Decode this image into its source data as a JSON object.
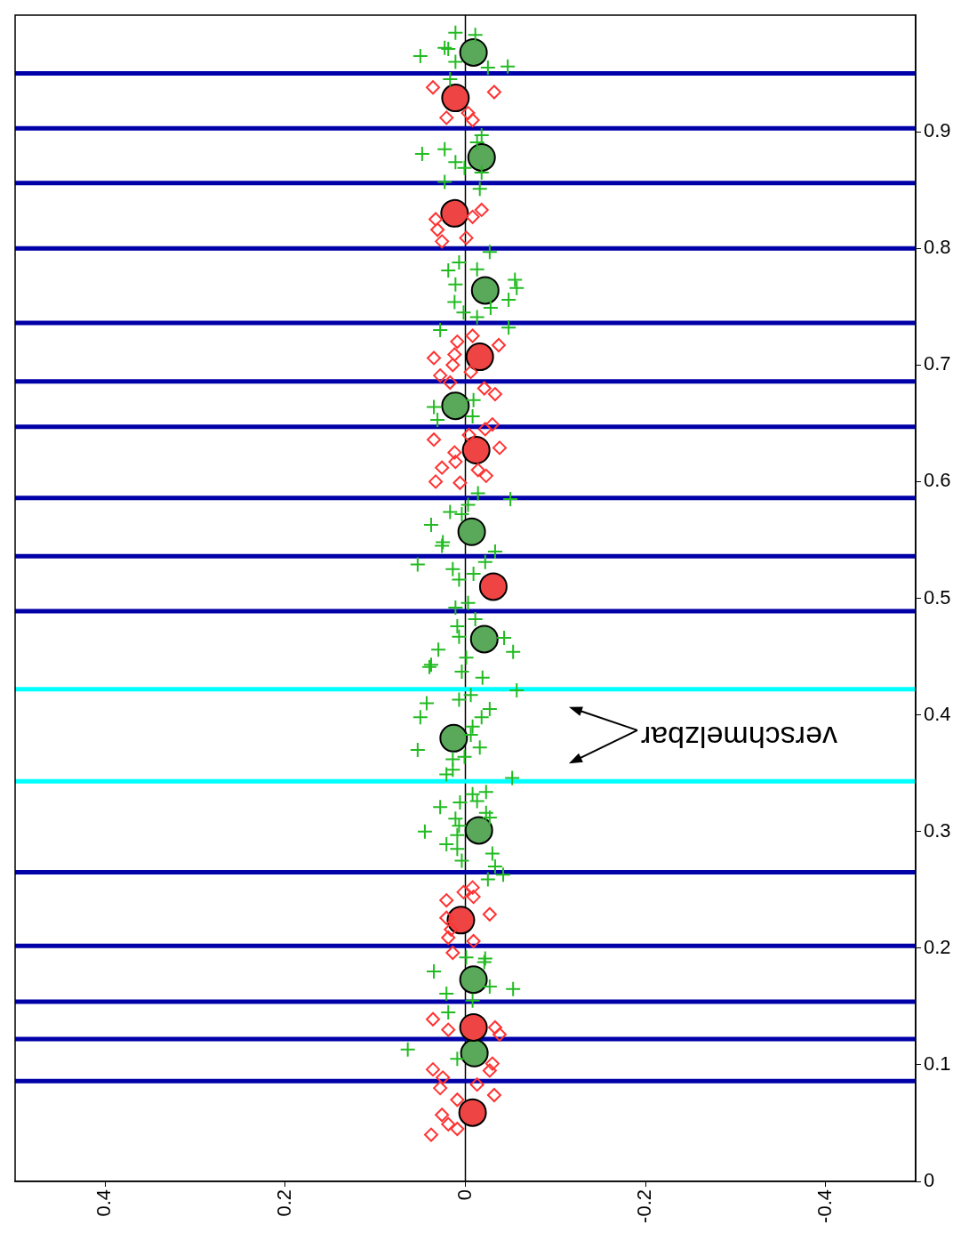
{
  "chart_data": {
    "type": "scatter",
    "xlim": [
      0.5,
      -0.5
    ],
    "ylim": [
      0,
      1
    ],
    "xticks": [
      0.4,
      0.2,
      0,
      -0.2,
      -0.4
    ],
    "yticks": [
      0,
      0.1,
      0.2,
      0.3,
      0.4,
      0.5,
      0.6,
      0.7,
      0.8,
      0.9
    ],
    "grid": false,
    "legend": false,
    "annotations": [
      "verschmelzbar"
    ],
    "ref_lines": [
      {
        "axis": "x",
        "value": 0,
        "color": "#000000"
      },
      {
        "axis": "y",
        "value": 0.086,
        "color": "#0000a8"
      },
      {
        "axis": "y",
        "value": 0.122,
        "color": "#0000a8"
      },
      {
        "axis": "y",
        "value": 0.154,
        "color": "#0000a8"
      },
      {
        "axis": "y",
        "value": 0.202,
        "color": "#0000a8"
      },
      {
        "axis": "y",
        "value": 0.265,
        "color": "#0000a8"
      },
      {
        "axis": "y",
        "value": 0.343,
        "color": "#00ffff"
      },
      {
        "axis": "y",
        "value": 0.422,
        "color": "#00ffff"
      },
      {
        "axis": "y",
        "value": 0.489,
        "color": "#0000a8"
      },
      {
        "axis": "y",
        "value": 0.536,
        "color": "#0000a8"
      },
      {
        "axis": "y",
        "value": 0.586,
        "color": "#0000a8"
      },
      {
        "axis": "y",
        "value": 0.647,
        "color": "#0000a8"
      },
      {
        "axis": "y",
        "value": 0.686,
        "color": "#0000a8"
      },
      {
        "axis": "y",
        "value": 0.736,
        "color": "#0000a8"
      },
      {
        "axis": "y",
        "value": 0.8,
        "color": "#0000a8"
      },
      {
        "axis": "y",
        "value": 0.856,
        "color": "#0000a8"
      },
      {
        "axis": "y",
        "value": 0.903,
        "color": "#0000a8"
      },
      {
        "axis": "y",
        "value": 0.95,
        "color": "#0000a8"
      }
    ],
    "series": [
      {
        "type": "scatter",
        "marker": "cross",
        "color": "#22bb22",
        "values": [
          0.985,
          0.983,
          0.972,
          0.971,
          0.965,
          0.96,
          0.955,
          0.956,
          0.945,
          0.897,
          0.891,
          0.881,
          0.885,
          0.874,
          0.869,
          0.865,
          0.851,
          0.857,
          0.797,
          0.788,
          0.781,
          0.782,
          0.769,
          0.773,
          0.766,
          0.756,
          0.754,
          0.749,
          0.745,
          0.741,
          0.73,
          0.732,
          0.664,
          0.67,
          0.653,
          0.656,
          0.59,
          0.585,
          0.58,
          0.574,
          0.572,
          0.563,
          0.548,
          0.545,
          0.54,
          0.531,
          0.529,
          0.525,
          0.521,
          0.516,
          0.492,
          0.496,
          0.482,
          0.476,
          0.467,
          0.466,
          0.454,
          0.456,
          0.443,
          0.441,
          0.449,
          0.437,
          0.432,
          0.421,
          0.417,
          0.413,
          0.41,
          0.398,
          0.405,
          0.398,
          0.39,
          0.383,
          0.372,
          0.37,
          0.362,
          0.364,
          0.353,
          0.346,
          0.349,
          0.334,
          0.332,
          0.326,
          0.325,
          0.321,
          0.316,
          0.312,
          0.311,
          0.305,
          0.3,
          0.297,
          0.289,
          0.285,
          0.281,
          0.275,
          0.27,
          0.263,
          0.259,
          0.192,
          0.191,
          0.18,
          0.188,
          0.167,
          0.165,
          0.161,
          0.145,
          0.155,
          0.113,
          0.105
        ],
        "x": [
          0.011,
          -0.011,
          0.023,
          0.019,
          0.05,
          0.011,
          -0.025,
          -0.047,
          0.017,
          -0.018,
          -0.013,
          0.048,
          0.023,
          0.011,
          0.001,
          -0.018,
          -0.016,
          0.023,
          -0.027,
          0.007,
          0.019,
          -0.013,
          0.011,
          -0.055,
          -0.057,
          -0.048,
          0.012,
          -0.028,
          0.002,
          -0.013,
          0.028,
          -0.048,
          0.035,
          -0.009,
          0.031,
          -0.008,
          -0.014,
          -0.05,
          -0.003,
          0.017,
          0.004,
          0.038,
          0.025,
          0.026,
          -0.033,
          -0.022,
          0.053,
          0.014,
          -0.009,
          0.007,
          0.011,
          -0.003,
          -0.011,
          0.009,
          0.007,
          -0.043,
          -0.053,
          0.03,
          0.038,
          0.04,
          -0.001,
          0.004,
          -0.019,
          -0.057,
          -0.006,
          0.007,
          0.043,
          0.05,
          -0.027,
          -0.018,
          -0.008,
          -0.006,
          -0.016,
          0.053,
          0.014,
          0.001,
          0.014,
          -0.052,
          0.021,
          -0.023,
          -0.008,
          -0.013,
          0.006,
          0.028,
          -0.023,
          -0.027,
          0.011,
          0.007,
          0.045,
          0.009,
          0.021,
          0.009,
          -0.03,
          0.004,
          -0.033,
          -0.042,
          -0.025,
          -0.001,
          -0.022,
          0.035,
          -0.021,
          -0.027,
          -0.053,
          0.021,
          0.019,
          -0.008,
          0.064,
          0.009
        ]
      },
      {
        "type": "scatter",
        "marker": "diamond",
        "color": "#ff3333",
        "values": [
          0.938,
          0.934,
          0.912,
          0.916,
          0.91,
          0.825,
          0.816,
          0.806,
          0.809,
          0.833,
          0.827,
          0.725,
          0.72,
          0.717,
          0.706,
          0.709,
          0.7,
          0.691,
          0.694,
          0.685,
          0.68,
          0.675,
          0.649,
          0.645,
          0.636,
          0.64,
          0.629,
          0.625,
          0.617,
          0.612,
          0.61,
          0.605,
          0.6,
          0.599,
          0.252,
          0.248,
          0.241,
          0.244,
          0.229,
          0.226,
          0.216,
          0.209,
          0.206,
          0.196,
          0.139,
          0.13,
          0.132,
          0.126,
          0.101,
          0.096,
          0.095,
          0.089,
          0.083,
          0.08,
          0.074,
          0.07,
          0.057,
          0.049,
          0.045,
          0.04
        ],
        "x": [
          0.036,
          -0.032,
          0.021,
          -0.003,
          -0.008,
          0.033,
          0.031,
          0.026,
          -0.001,
          -0.018,
          -0.008,
          -0.008,
          0.009,
          -0.037,
          0.035,
          0.012,
          0.014,
          0.028,
          -0.006,
          0.017,
          -0.021,
          -0.033,
          -0.03,
          -0.022,
          0.035,
          -0.004,
          -0.038,
          0.012,
          0.011,
          0.026,
          -0.014,
          -0.023,
          0.033,
          0.006,
          -0.008,
          0.002,
          0.021,
          -0.009,
          -0.027,
          0.021,
          0.016,
          0.019,
          -0.009,
          0.014,
          0.036,
          0.019,
          -0.033,
          -0.038,
          -0.03,
          0.036,
          -0.027,
          0.025,
          -0.013,
          0.028,
          -0.032,
          0.009,
          0.026,
          0.019,
          0.009,
          0.038
        ]
      },
      {
        "type": "scatter",
        "marker": "circle",
        "color": "#ee4444",
        "values": [
          0.929,
          0.83,
          0.707,
          0.627,
          0.51,
          0.224,
          0.132,
          0.059
        ],
        "x": [
          0.011,
          0.012,
          -0.016,
          -0.012,
          -0.031,
          0.005,
          -0.009,
          -0.008
        ]
      },
      {
        "type": "scatter",
        "marker": "circle",
        "color": "#5aa85a",
        "values": [
          0.968,
          0.878,
          0.764,
          0.665,
          0.557,
          0.465,
          0.38,
          0.301,
          0.173,
          0.11
        ],
        "x": [
          -0.009,
          -0.018,
          -0.022,
          0.011,
          -0.007,
          -0.021,
          0.013,
          -0.015,
          -0.009,
          -0.01
        ]
      }
    ]
  }
}
